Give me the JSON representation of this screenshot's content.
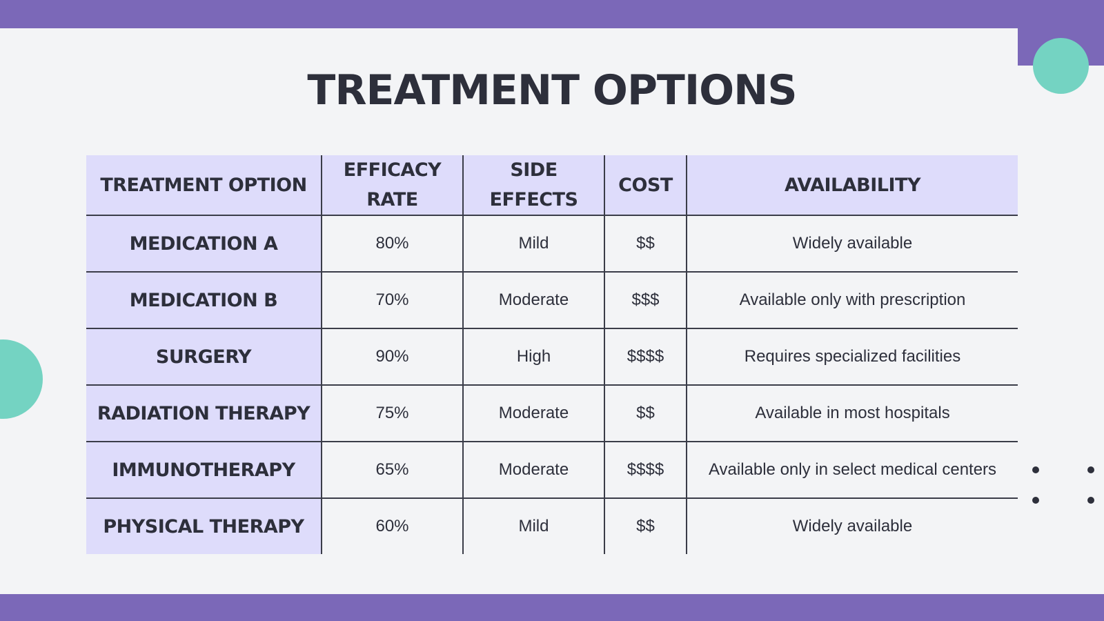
{
  "slide": {
    "title": "TREATMENT OPTIONS",
    "colors": {
      "frame": "#7b68b8",
      "panel": "#f3f4f6",
      "accent_teal": "#74d3c2",
      "header_fill": "#dedcfb",
      "text": "#2d2f3b"
    }
  },
  "table": {
    "headers": [
      "TREATMENT OPTION",
      "EFFICACY\nRATE",
      "SIDE\nEFFECTS",
      "COST",
      "AVAILABILITY"
    ],
    "rows": [
      [
        "MEDICATION A",
        "80%",
        "Mild",
        "$$",
        "Widely available"
      ],
      [
        "MEDICATION B",
        "70%",
        "Moderate",
        "$$$",
        "Available only with prescription"
      ],
      [
        "SURGERY",
        "90%",
        "High",
        "$$$$",
        "Requires specialized facilities"
      ],
      [
        "RADIATION THERAPY",
        "75%",
        "Moderate",
        "$$",
        "Available in most hospitals"
      ],
      [
        "IMMUNOTHERAPY",
        "65%",
        "Moderate",
        "$$$$",
        "Available only in select medical centers"
      ],
      [
        "PHYSICAL THERAPY",
        "60%",
        "Mild",
        "$$",
        "Widely available"
      ]
    ]
  }
}
